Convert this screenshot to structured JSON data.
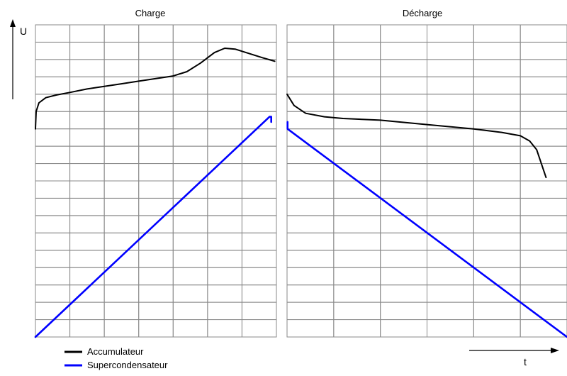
{
  "chart_data": [
    {
      "type": "line",
      "title": "Charge",
      "ylabel": "U",
      "xlabel": "",
      "xlim": [
        0,
        7
      ],
      "ylim": [
        0,
        18
      ],
      "grid": true,
      "series": [
        {
          "name": "Accumulateur",
          "color": "#000000",
          "x": [
            0,
            0.02,
            0.1,
            0.3,
            0.6,
            1.0,
            1.5,
            2.0,
            2.5,
            3.0,
            3.5,
            4.0,
            4.4,
            4.8,
            5.2,
            5.5,
            5.8,
            6.2,
            6.6,
            6.95
          ],
          "y": [
            12.0,
            13.0,
            13.5,
            13.8,
            13.95,
            14.1,
            14.3,
            14.45,
            14.6,
            14.75,
            14.9,
            15.05,
            15.3,
            15.8,
            16.4,
            16.65,
            16.6,
            16.35,
            16.1,
            15.9
          ]
        },
        {
          "name": "Supercondensateur",
          "color": "#0000ff",
          "x": [
            0,
            6.8,
            6.85,
            6.85
          ],
          "y": [
            0,
            12.7,
            12.7,
            12.4
          ]
        }
      ]
    },
    {
      "type": "line",
      "title": "Décharge",
      "ylabel": "",
      "xlabel": "t",
      "xlim": [
        0,
        6
      ],
      "ylim": [
        0,
        18
      ],
      "grid": true,
      "series": [
        {
          "name": "Accumulateur",
          "color": "#000000",
          "x": [
            0,
            0.15,
            0.4,
            0.8,
            1.2,
            2.0,
            3.0,
            4.0,
            4.6,
            5.0,
            5.2,
            5.35,
            5.45,
            5.55
          ],
          "y": [
            14.0,
            13.35,
            12.9,
            12.7,
            12.6,
            12.5,
            12.25,
            12.0,
            11.8,
            11.6,
            11.3,
            10.8,
            10.0,
            9.2
          ]
        },
        {
          "name": "Supercondensateur",
          "color": "#0000ff",
          "x": [
            0.01,
            0.01,
            0.01,
            6.0
          ],
          "y": [
            12.4,
            12.0,
            12.0,
            0
          ]
        }
      ]
    }
  ],
  "legend": {
    "position": "bottom-left",
    "items": [
      {
        "label": "Accumulateur",
        "color": "#000000"
      },
      {
        "label": "Supercondensateur",
        "color": "#0000ff"
      }
    ]
  }
}
